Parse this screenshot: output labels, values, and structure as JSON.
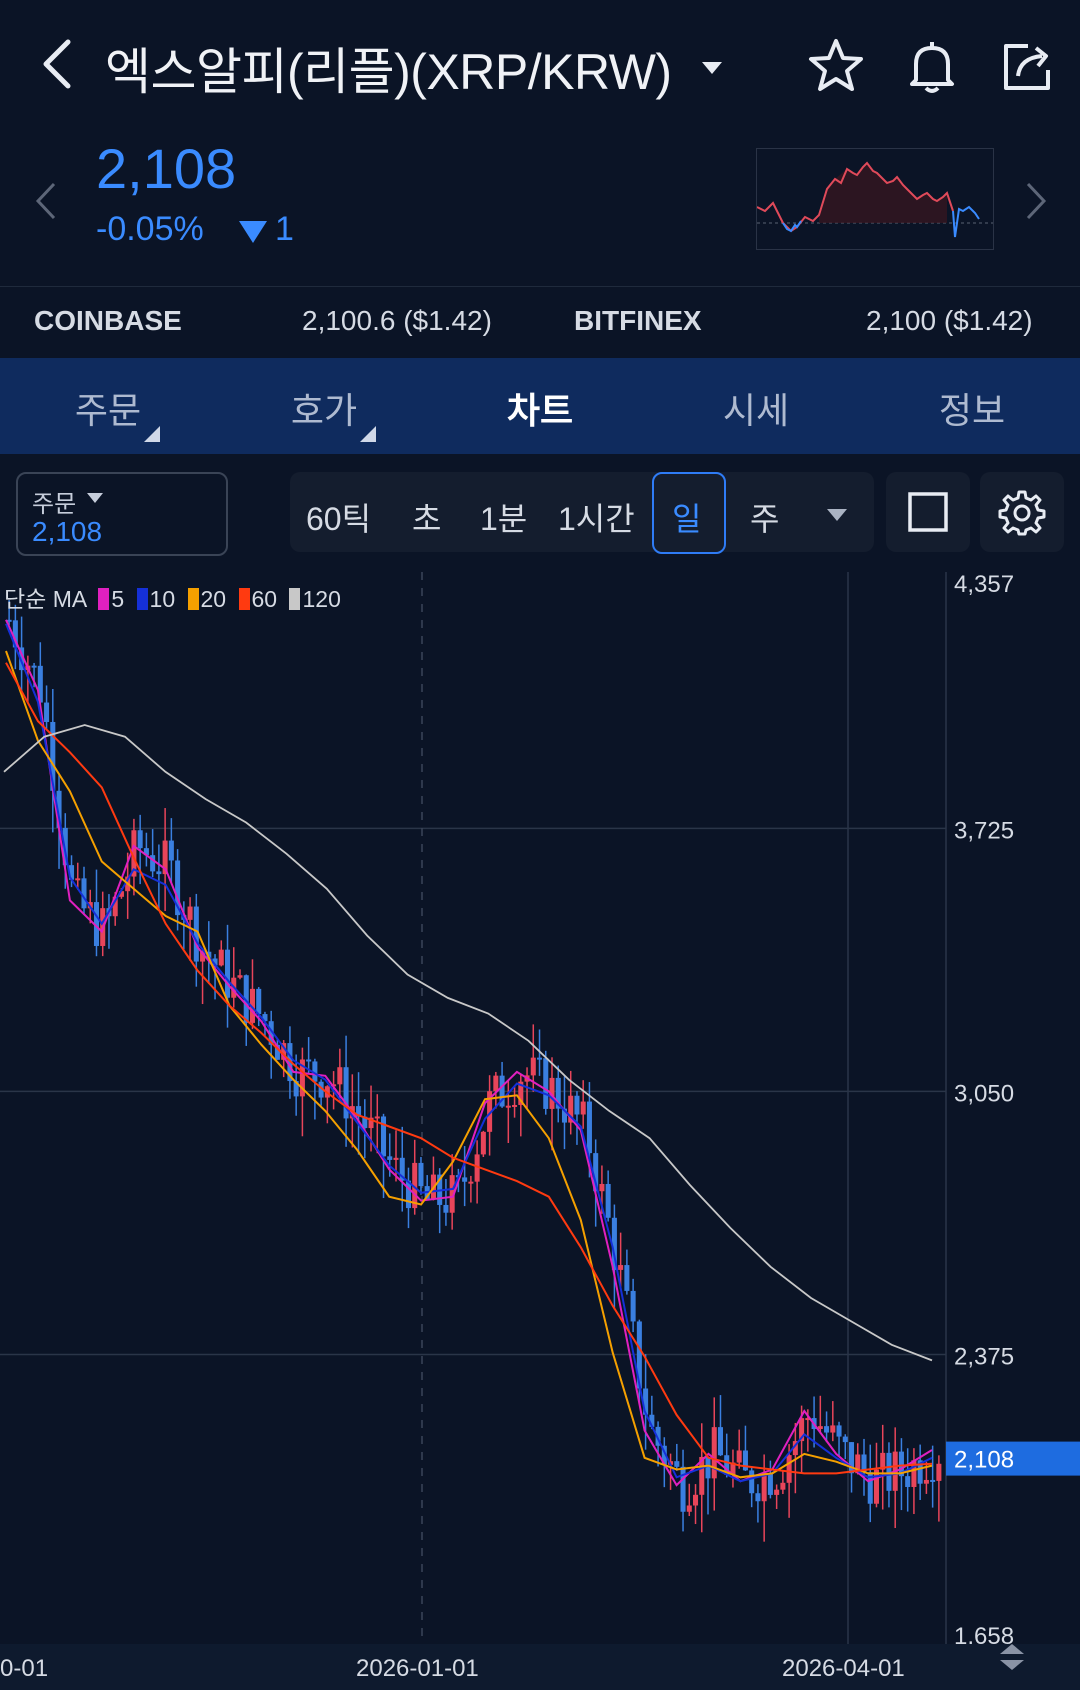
{
  "header": {
    "title": "엑스알피(리플)(XRP/KRW)",
    "icons": [
      "back-icon",
      "caret-down-icon",
      "star-icon",
      "bell-icon",
      "share-icon"
    ]
  },
  "price": {
    "value": "2,108",
    "change_pct": "-0.05%",
    "change_abs": "1",
    "color": "#3a8bff"
  },
  "exchanges": [
    {
      "name": "COINBASE",
      "value": "2,100.6 ($1.42)"
    },
    {
      "name": "BITFINEX",
      "value": "2,100 ($1.42)"
    }
  ],
  "tabs": [
    {
      "label": "주문",
      "active": false
    },
    {
      "label": "호가",
      "active": false
    },
    {
      "label": "차트",
      "active": true
    },
    {
      "label": "시세",
      "active": false
    },
    {
      "label": "정보",
      "active": false
    }
  ],
  "toolbar": {
    "order_label": "주문",
    "order_value": "2,108",
    "periods": [
      "60틱",
      "초",
      "1분",
      "1시간",
      "일",
      "주"
    ],
    "selected_period": "일"
  },
  "legend": {
    "label": "단순 MA",
    "items": [
      {
        "period": "5",
        "color": "#e020c0"
      },
      {
        "period": "10",
        "color": "#1530d8"
      },
      {
        "period": "20",
        "color": "#f5a000"
      },
      {
        "period": "60",
        "color": "#ff3a10"
      },
      {
        "period": "120",
        "color": "#c8c8c8"
      }
    ]
  },
  "chart_data": {
    "type": "line",
    "title": "",
    "xlabel": "",
    "ylabel": "",
    "ylim": [
      1658,
      4357
    ],
    "y_ticks": [
      "4,357",
      "3,725",
      "3,050",
      "2,375",
      "1,658"
    ],
    "x_tick_labels": [
      "0-01",
      "2026-01-01",
      "2026-04-01"
    ],
    "current_price_label": "2,108",
    "up_color": "#e8455a",
    "down_color": "#3a7fe0",
    "series": [
      {
        "name": "5",
        "color": "#e020c0",
        "values": [
          4260,
          4080,
          3540,
          3460,
          3680,
          3620,
          3420,
          3320,
          3230,
          3100,
          3090,
          2980,
          2850,
          2770,
          2780,
          3020,
          3100,
          3050,
          2950,
          2600,
          2180,
          2040,
          2120,
          2050,
          2080,
          2230,
          2120,
          2050,
          2080,
          2130
        ]
      },
      {
        "name": "10",
        "color": "#1530d8",
        "values": [
          4250,
          4050,
          3600,
          3480,
          3620,
          3580,
          3430,
          3330,
          3240,
          3130,
          3080,
          2970,
          2860,
          2790,
          2800,
          2980,
          3070,
          3040,
          2960,
          2650,
          2230,
          2060,
          2090,
          2050,
          2070,
          2170,
          2110,
          2060,
          2070,
          2110
        ]
      },
      {
        "name": "20",
        "color": "#f5a000",
        "values": [
          4180,
          3950,
          3820,
          3640,
          3570,
          3500,
          3460,
          3270,
          3170,
          3080,
          3000,
          2900,
          2780,
          2760,
          2870,
          3030,
          3040,
          2930,
          2720,
          2380,
          2110,
          2080,
          2090,
          2060,
          2070,
          2120,
          2100,
          2070,
          2070,
          2090
        ]
      },
      {
        "name": "60",
        "color": "#ff3a10",
        "values": [
          4150,
          4000,
          3920,
          3830,
          3650,
          3480,
          3360,
          3270,
          3200,
          3120,
          3050,
          2990,
          2960,
          2930,
          2880,
          2850,
          2820,
          2780,
          2650,
          2500,
          2370,
          2220,
          2110,
          2090,
          2080,
          2070,
          2070,
          2080,
          2090,
          2095
        ]
      },
      {
        "name": "120",
        "color": "#c8c8c8",
        "values": [
          3870,
          3960,
          3990,
          3960,
          3870,
          3800,
          3740,
          3660,
          3570,
          3450,
          3350,
          3290,
          3250,
          3180,
          3080,
          3000,
          2930,
          2810,
          2700,
          2600,
          2520,
          2460,
          2400,
          2360
        ]
      }
    ]
  }
}
